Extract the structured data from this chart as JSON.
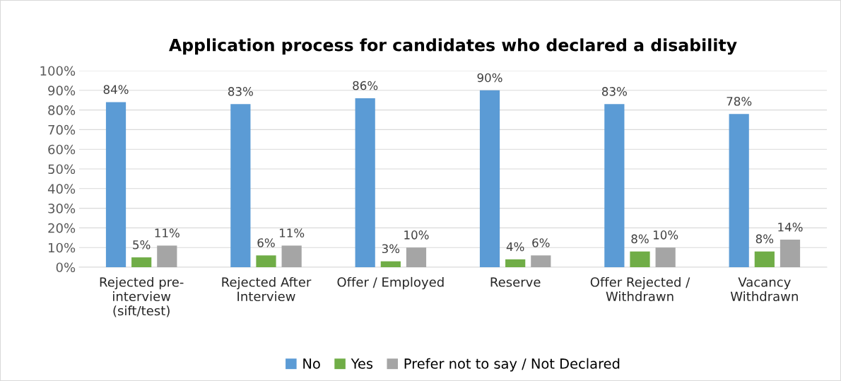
{
  "chart_data": {
    "type": "bar",
    "title": "Application process for candidates who declared a disability",
    "categories": [
      "Rejected pre-\ninterview\n(sift/test)",
      "Rejected After\nInterview",
      "Offer / Employed",
      "Reserve",
      "Offer Rejected /\nWithdrawn",
      "Vacancy\nWithdrawn"
    ],
    "series": [
      {
        "name": "No",
        "color": "#5b9bd5",
        "values": [
          84,
          83,
          86,
          90,
          83,
          78
        ],
        "value_labels": [
          "84%",
          "83%",
          "86%",
          "90%",
          "83%",
          "78%"
        ]
      },
      {
        "name": "Yes",
        "color": "#70ad47",
        "values": [
          5,
          6,
          3,
          4,
          8,
          8
        ],
        "value_labels": [
          "5%",
          "6%",
          "3%",
          "4%",
          "8%",
          "8%"
        ]
      },
      {
        "name": "Prefer not to say / Not Declared",
        "color": "#a5a5a5",
        "values": [
          11,
          11,
          10,
          6,
          10,
          14
        ],
        "value_labels": [
          "11%",
          "11%",
          "10%",
          "6%",
          "10%",
          "14%"
        ]
      }
    ],
    "ylim": [
      0,
      100
    ],
    "yticks": [
      {
        "value": 0,
        "label": "0%"
      },
      {
        "value": 10,
        "label": "10%"
      },
      {
        "value": 20,
        "label": "20%"
      },
      {
        "value": 30,
        "label": "30%"
      },
      {
        "value": 40,
        "label": "40%"
      },
      {
        "value": 50,
        "label": "50%"
      },
      {
        "value": 60,
        "label": "60%"
      },
      {
        "value": 70,
        "label": "70%"
      },
      {
        "value": 80,
        "label": "80%"
      },
      {
        "value": 90,
        "label": "90%"
      },
      {
        "value": 100,
        "label": "100%"
      }
    ],
    "grid": "y",
    "legend": "bottom"
  }
}
